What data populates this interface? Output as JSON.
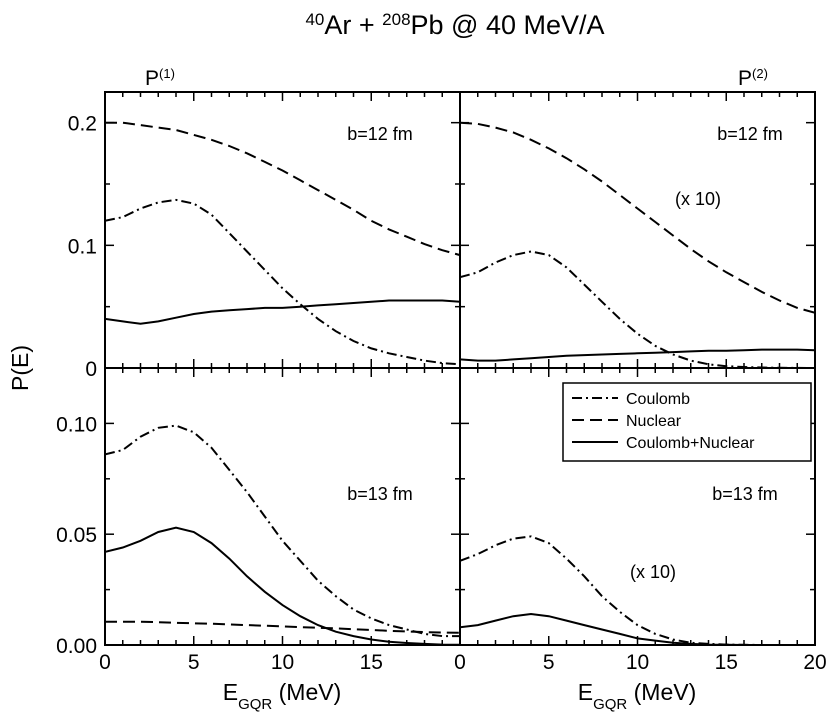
{
  "title": {
    "pre1": "40",
    "base1": "Ar + ",
    "pre2": "208",
    "base2": "Pb @ 40 MeV/A"
  },
  "col_labels": [
    {
      "base": "P",
      "sup": "(1)"
    },
    {
      "base": "P",
      "sup": "(2)"
    }
  ],
  "ylabel": "P(E)",
  "xlabel": {
    "base": "E",
    "sub": "GQR",
    "rest": " (MeV)"
  },
  "legend": {
    "placement": "lower-right panel, upper-right",
    "entries": [
      {
        "series": "coulomb",
        "label": "Coulomb"
      },
      {
        "series": "nuclear",
        "label": "Nuclear"
      },
      {
        "series": "coulomb_nuclear",
        "label": "Coulomb+Nuclear"
      }
    ]
  },
  "colors": {
    "line": "#000000",
    "background": "#ffffff"
  },
  "chart_data": [
    {
      "type": "line",
      "panel": "top-left",
      "annotation": "b=12 fm",
      "xlim": [
        0,
        20
      ],
      "ylim": [
        0,
        0.225
      ],
      "xticks": [],
      "xtick_labels": [],
      "yticks": [
        0,
        0.1,
        0.2
      ],
      "ytick_labels": [
        "0",
        "0.1",
        "0.2"
      ],
      "x": [
        0,
        1,
        2,
        3,
        4,
        5,
        6,
        7,
        8,
        9,
        10,
        11,
        12,
        13,
        14,
        15,
        16,
        17,
        18,
        19,
        20
      ],
      "series": [
        {
          "key": "coulomb",
          "name": "Coulomb",
          "style": "dashdot",
          "values": [
            0.12,
            0.123,
            0.13,
            0.135,
            0.137,
            0.134,
            0.125,
            0.11,
            0.095,
            0.08,
            0.065,
            0.052,
            0.04,
            0.03,
            0.022,
            0.016,
            0.012,
            0.009,
            0.006,
            0.004,
            0.003
          ]
        },
        {
          "key": "nuclear",
          "name": "Nuclear",
          "style": "dashed",
          "values": [
            0.2,
            0.2,
            0.198,
            0.196,
            0.194,
            0.19,
            0.186,
            0.181,
            0.175,
            0.168,
            0.161,
            0.153,
            0.145,
            0.137,
            0.129,
            0.12,
            0.113,
            0.107,
            0.101,
            0.096,
            0.092
          ]
        },
        {
          "key": "coulomb_nuclear",
          "name": "Coulomb+Nuclear",
          "style": "solid",
          "values": [
            0.04,
            0.038,
            0.036,
            0.038,
            0.041,
            0.044,
            0.046,
            0.047,
            0.048,
            0.049,
            0.049,
            0.05,
            0.051,
            0.052,
            0.053,
            0.054,
            0.055,
            0.055,
            0.055,
            0.055,
            0.054
          ]
        }
      ]
    },
    {
      "type": "line",
      "panel": "top-right",
      "annotation": "b=12 fm",
      "scale_note": "(x 10)",
      "xlim": [
        0,
        20
      ],
      "ylim": [
        0,
        0.225
      ],
      "xticks": [],
      "xtick_labels": [],
      "yticks": [],
      "ytick_labels": [],
      "x": [
        0,
        1,
        2,
        3,
        4,
        5,
        6,
        7,
        8,
        9,
        10,
        11,
        12,
        13,
        14,
        15,
        16,
        17,
        18,
        19,
        20
      ],
      "series": [
        {
          "key": "coulomb",
          "name": "Coulomb",
          "style": "dashdot",
          "values": [
            0.074,
            0.078,
            0.086,
            0.092,
            0.095,
            0.092,
            0.082,
            0.068,
            0.054,
            0.04,
            0.028,
            0.018,
            0.011,
            0.006,
            0.003,
            0.0015,
            0.0008,
            0.0004,
            0.0002,
            0.0001,
            0.0
          ]
        },
        {
          "key": "nuclear",
          "name": "Nuclear",
          "style": "dashed",
          "values": [
            0.2,
            0.199,
            0.196,
            0.192,
            0.186,
            0.179,
            0.171,
            0.162,
            0.152,
            0.141,
            0.13,
            0.119,
            0.108,
            0.097,
            0.087,
            0.078,
            0.07,
            0.062,
            0.055,
            0.049,
            0.045
          ]
        },
        {
          "key": "coulomb_nuclear",
          "name": "Coulomb+Nuclear",
          "style": "solid",
          "values": [
            0.007,
            0.006,
            0.006,
            0.007,
            0.008,
            0.009,
            0.01,
            0.0105,
            0.011,
            0.0115,
            0.012,
            0.0125,
            0.013,
            0.0135,
            0.014,
            0.014,
            0.0145,
            0.015,
            0.015,
            0.015,
            0.0145
          ]
        }
      ]
    },
    {
      "type": "line",
      "panel": "bottom-left",
      "annotation": "b=13 fm",
      "xlim": [
        0,
        20
      ],
      "ylim": [
        0,
        0.125
      ],
      "xticks": [
        0,
        5,
        10,
        15
      ],
      "xtick_labels": [
        "0",
        "5",
        "10",
        "15"
      ],
      "yticks": [
        0,
        0.05,
        0.1
      ],
      "ytick_labels": [
        "0.00",
        "0.05",
        "0.10"
      ],
      "x": [
        0,
        1,
        2,
        3,
        4,
        5,
        6,
        7,
        8,
        9,
        10,
        11,
        12,
        13,
        14,
        15,
        16,
        17,
        18,
        19,
        20
      ],
      "series": [
        {
          "key": "coulomb",
          "name": "Coulomb",
          "style": "dashdot",
          "values": [
            0.086,
            0.088,
            0.094,
            0.098,
            0.099,
            0.096,
            0.089,
            0.079,
            0.069,
            0.058,
            0.047,
            0.038,
            0.029,
            0.022,
            0.016,
            0.012,
            0.009,
            0.007,
            0.005,
            0.004,
            0.004
          ]
        },
        {
          "key": "nuclear",
          "name": "Nuclear",
          "style": "dashed",
          "values": [
            0.0105,
            0.0105,
            0.0105,
            0.0103,
            0.01,
            0.0098,
            0.0096,
            0.0093,
            0.009,
            0.0087,
            0.0084,
            0.0081,
            0.0078,
            0.0075,
            0.0071,
            0.0068,
            0.0064,
            0.0061,
            0.0058,
            0.0056,
            0.0055
          ]
        },
        {
          "key": "coulomb_nuclear",
          "name": "Coulomb+Nuclear",
          "style": "solid",
          "values": [
            0.042,
            0.044,
            0.047,
            0.051,
            0.053,
            0.051,
            0.046,
            0.039,
            0.031,
            0.024,
            0.018,
            0.013,
            0.009,
            0.006,
            0.004,
            0.0025,
            0.0015,
            0.0009,
            0.0005,
            0.0002,
            0.0001
          ]
        }
      ]
    },
    {
      "type": "line",
      "panel": "bottom-right",
      "annotation": "b=13 fm",
      "scale_note": "(x 10)",
      "xlim": [
        0,
        20
      ],
      "ylim": [
        0,
        0.125
      ],
      "xticks": [
        0,
        5,
        10,
        15,
        20
      ],
      "xtick_labels": [
        "0",
        "5",
        "10",
        "15",
        "20"
      ],
      "yticks": [],
      "ytick_labels": [],
      "x": [
        0,
        1,
        2,
        3,
        4,
        5,
        6,
        7,
        8,
        9,
        10,
        11,
        12,
        13,
        14,
        15,
        16,
        17,
        18,
        19,
        20
      ],
      "series": [
        {
          "key": "coulomb",
          "name": "Coulomb",
          "style": "dashdot",
          "values": [
            0.038,
            0.041,
            0.045,
            0.048,
            0.049,
            0.046,
            0.039,
            0.031,
            0.022,
            0.015,
            0.009,
            0.005,
            0.0025,
            0.001,
            0.0005,
            0.0002,
            0.0001,
            0.0,
            0.0,
            0.0,
            0.0
          ]
        },
        {
          "key": "coulomb_nuclear",
          "name": "Coulomb+Nuclear",
          "style": "solid",
          "values": [
            0.008,
            0.009,
            0.011,
            0.013,
            0.014,
            0.013,
            0.011,
            0.009,
            0.007,
            0.005,
            0.003,
            0.002,
            0.001,
            0.0005,
            0.0002,
            0.0001,
            0.0,
            0.0,
            0.0,
            0.0,
            0.0
          ]
        }
      ]
    }
  ]
}
